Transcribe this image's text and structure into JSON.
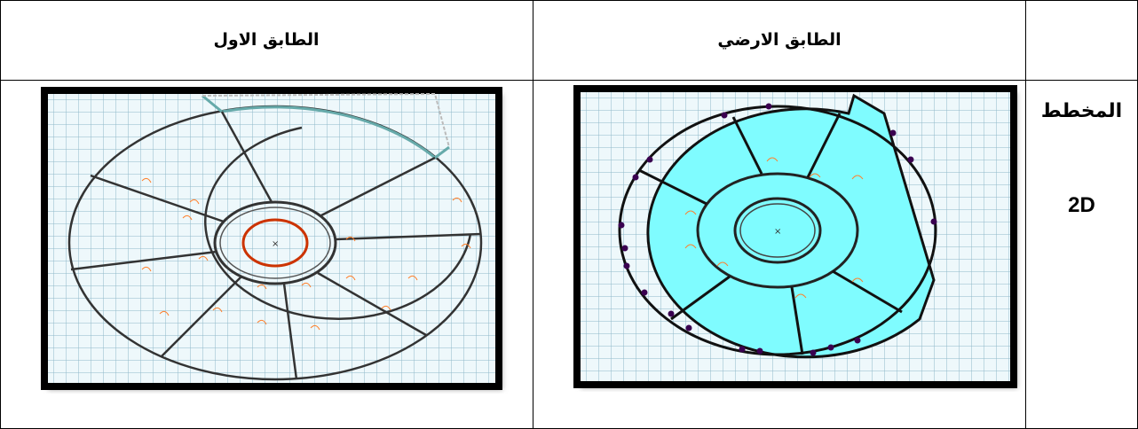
{
  "table": {
    "headers": [
      "الطابق الاول",
      "الطابق الارضي",
      ""
    ],
    "row": {
      "label_line1": "المخطط",
      "label_line2": "2D"
    }
  },
  "plans": [
    {
      "name": "first-floor-plan",
      "fill": "none",
      "accent": "#cc5500"
    },
    {
      "name": "ground-floor-plan",
      "fill": "#7ffcff",
      "accent": "#4b0082"
    }
  ]
}
